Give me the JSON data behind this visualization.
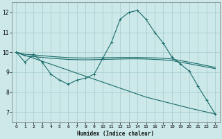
{
  "xlabel": "Humidex (Indice chaleur)",
  "bg_color": "#cce8e8",
  "grid_color": "#aacfcf",
  "line_color": "#1a6b6b",
  "xlim": [
    -0.5,
    23.5
  ],
  "ylim": [
    6.5,
    12.5
  ],
  "xticks": [
    0,
    1,
    2,
    3,
    4,
    5,
    6,
    7,
    8,
    9,
    10,
    11,
    12,
    13,
    14,
    15,
    16,
    17,
    18,
    19,
    20,
    21,
    22,
    23
  ],
  "yticks": [
    7,
    8,
    9,
    10,
    11,
    12
  ],
  "curve_peak_x": [
    0,
    1,
    2,
    3,
    4,
    5,
    6,
    7,
    8,
    9,
    10,
    11,
    12,
    13,
    14,
    15,
    16,
    17,
    18,
    19,
    20,
    21,
    22,
    23
  ],
  "curve_peak_y": [
    10.0,
    9.5,
    9.9,
    9.5,
    8.9,
    8.6,
    8.4,
    8.6,
    8.7,
    8.9,
    9.7,
    10.5,
    11.65,
    12.0,
    12.1,
    11.65,
    11.0,
    10.45,
    9.75,
    9.4,
    9.05,
    8.3,
    7.6,
    6.9
  ],
  "curve_flat1_x": [
    0,
    1,
    2,
    3,
    4,
    5,
    6,
    7,
    8,
    9,
    10,
    11,
    12,
    13,
    14,
    15,
    16,
    17,
    18,
    19,
    20,
    21,
    22,
    23
  ],
  "curve_flat1_y": [
    10.0,
    9.82,
    9.78,
    9.74,
    9.7,
    9.67,
    9.64,
    9.63,
    9.62,
    9.63,
    9.64,
    9.65,
    9.66,
    9.67,
    9.67,
    9.66,
    9.64,
    9.62,
    9.58,
    9.5,
    9.42,
    9.34,
    9.26,
    9.18
  ],
  "curve_flat2_x": [
    0,
    1,
    2,
    3,
    4,
    5,
    6,
    7,
    8,
    9,
    10,
    11,
    12,
    13,
    14,
    15,
    16,
    17,
    18,
    19,
    20,
    21,
    22,
    23
  ],
  "curve_flat2_y": [
    10.0,
    9.9,
    9.87,
    9.83,
    9.79,
    9.76,
    9.73,
    9.72,
    9.71,
    9.72,
    9.73,
    9.73,
    9.74,
    9.74,
    9.74,
    9.73,
    9.72,
    9.7,
    9.66,
    9.58,
    9.5,
    9.42,
    9.33,
    9.24
  ],
  "curve_diag_x": [
    0,
    5,
    10,
    15,
    20,
    23
  ],
  "curve_diag_y": [
    10.0,
    9.25,
    8.5,
    7.75,
    7.2,
    6.9
  ]
}
